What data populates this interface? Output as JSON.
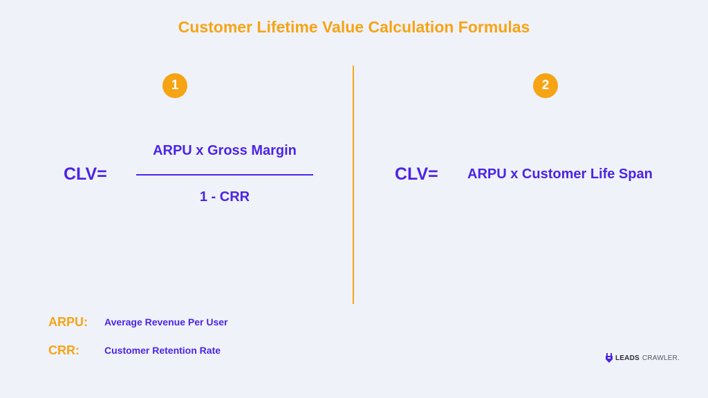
{
  "title": "Customer Lifetime Value Calculation Formulas",
  "formula_1": {
    "badge": "1",
    "lhs": "CLV=",
    "numerator": "ARPU x Gross Margin",
    "denominator": "1 - CRR"
  },
  "formula_2": {
    "badge": "2",
    "lhs": "CLV=",
    "rhs": "ARPU x Customer Life Span"
  },
  "legend": [
    {
      "term": "ARPU:",
      "definition": "Average Revenue Per User"
    },
    {
      "term": "CRR:",
      "definition": "Customer Retention Rate"
    }
  ],
  "logo": {
    "word_1": "LEADS",
    "word_2": "CRAWLER."
  },
  "colors": {
    "accent": "#f6a414",
    "primary": "#4b24e6",
    "background": "#f0f2fa"
  }
}
